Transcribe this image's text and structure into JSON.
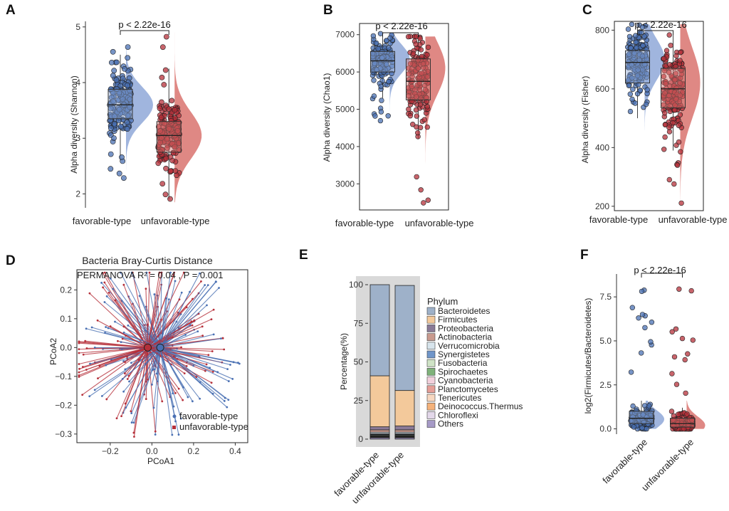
{
  "colors": {
    "favorable": "#4a70b3",
    "favorable_light": "#8fa8d8",
    "unfavorable": "#b5303a",
    "unfavorable_light": "#d9736f",
    "bar_bg": "#d9d9d9"
  },
  "chart_data": [
    {
      "panel": "A",
      "type": "raincloud",
      "ylabel": "Alpha diversity (Shannon)",
      "categories": [
        "favorable-type",
        "unfavorable-type"
      ],
      "yticks": [
        2,
        3,
        4,
        5
      ],
      "ylim": [
        1.75,
        5.1
      ],
      "pvalue": "p < 2.22e-16",
      "series": [
        {
          "name": "favorable-type",
          "q1": 3.35,
          "median": 3.6,
          "q3": 3.88,
          "min": 2.6,
          "max": 4.5,
          "ptmin": 2.2,
          "ptmax": 4.7,
          "density_peak": 3.6,
          "density_spread": 0.32
        },
        {
          "name": "unfavorable-type",
          "q1": 2.75,
          "median": 3.05,
          "q3": 3.3,
          "min": 1.9,
          "max": 4.25,
          "ptmin": 1.85,
          "ptmax": 4.9,
          "density_peak": 3.05,
          "density_spread": 0.42
        }
      ]
    },
    {
      "panel": "B",
      "type": "raincloud",
      "ylabel": "Alpha diversity (Chao1)",
      "categories": [
        "favorable-type",
        "unfavorable-type"
      ],
      "yticks": [
        3000,
        4000,
        5000,
        6000,
        7000
      ],
      "ylim": [
        2300,
        7300
      ],
      "pvalue": "p < 2.22e-16",
      "series": [
        {
          "name": "favorable-type",
          "q1": 6000,
          "median": 6300,
          "q3": 6550,
          "min": 5300,
          "max": 7000,
          "ptmin": 4550,
          "ptmax": 7050,
          "density_peak": 6350,
          "density_spread": 380
        },
        {
          "name": "unfavorable-type",
          "q1": 5250,
          "median": 5750,
          "q3": 6350,
          "min": 4200,
          "max": 6850,
          "ptmin": 2450,
          "ptmax": 6950,
          "density_peak": 6100,
          "density_spread": 700
        }
      ]
    },
    {
      "panel": "C",
      "type": "raincloud",
      "ylabel": "Alpha diversity (Fisher)",
      "categories": [
        "favorable-type",
        "unfavorable-type"
      ],
      "yticks": [
        200,
        400,
        600,
        800
      ],
      "ylim": [
        185,
        830
      ],
      "pvalue": "p < 2.22e-16",
      "series": [
        {
          "name": "favorable-type",
          "q1": 620,
          "median": 690,
          "q3": 730,
          "min": 500,
          "max": 810,
          "ptmin": 460,
          "ptmax": 820,
          "density_peak": 700,
          "density_spread": 70
        },
        {
          "name": "unfavorable-type",
          "q1": 535,
          "median": 600,
          "q3": 670,
          "min": 390,
          "max": 800,
          "ptmin": 205,
          "ptmax": 820,
          "density_peak": 620,
          "density_spread": 120
        }
      ]
    },
    {
      "panel": "D",
      "type": "scatter",
      "title": "Bacteria Bray-Curtis Distance",
      "annotation": "PERMANOVA R² = 0.04 , P = 0.001",
      "xlabel": "PCoA1",
      "ylabel": "PCoA2",
      "xticks": [
        -0.2,
        0.0,
        0.2,
        0.4
      ],
      "xtick_labels": [
        "−0.2",
        "0.0",
        "0.2",
        "0.4"
      ],
      "yticks": [
        -0.3,
        -0.2,
        -0.1,
        0.0,
        0.1,
        0.2
      ],
      "ytick_labels": [
        "−0.3",
        "−0.2",
        "−0.1",
        "0.0",
        "0.1",
        "0.2"
      ],
      "xlim": [
        -0.36,
        0.46
      ],
      "ylim": [
        -0.33,
        0.27
      ],
      "legend": [
        "favorable-type",
        "unfavorable-type"
      ],
      "centroids": [
        {
          "name": "favorable-type",
          "x": 0.04,
          "y": 0.0
        },
        {
          "name": "unfavorable-type",
          "x": -0.02,
          "y": 0.0
        }
      ]
    },
    {
      "panel": "E",
      "type": "bar",
      "stacked": true,
      "ylabel": "Percentage(%)",
      "yticks": [
        0,
        25,
        50,
        75,
        100
      ],
      "categories": [
        "favorable-type",
        "unfavorable-type"
      ],
      "legend_title": "Phylum",
      "series": [
        {
          "name": "Bacteroidetes",
          "color": "#9eb1c9",
          "values": [
            59,
            68
          ]
        },
        {
          "name": "Firmicutes",
          "color": "#f3c99b",
          "values": [
            33,
            23
          ]
        },
        {
          "name": "Proteobacteria",
          "color": "#8a7a97",
          "values": [
            2,
            2.5
          ]
        },
        {
          "name": "Actinobacteria",
          "color": "#c99a8e",
          "values": [
            1.5,
            1.5
          ]
        },
        {
          "name": "Verrucomicrobia",
          "color": "#d7e4ec",
          "values": [
            1,
            1
          ]
        },
        {
          "name": "Synergistetes",
          "color": "#6f95c9",
          "values": [
            0.5,
            0.5
          ]
        },
        {
          "name": "Fusobacteria",
          "color": "#cfe3c6",
          "values": [
            0.5,
            0.5
          ]
        },
        {
          "name": "Spirochaetes",
          "color": "#7fb27a",
          "values": [
            0.3,
            0.3
          ]
        },
        {
          "name": "Cyanobacteria",
          "color": "#f2d0dc",
          "values": [
            0.3,
            0.3
          ]
        },
        {
          "name": "Planctomycetes",
          "color": "#e59e97",
          "values": [
            0.3,
            0.3
          ]
        },
        {
          "name": "Tenericutes",
          "color": "#f7d7c0",
          "values": [
            0.3,
            0.3
          ]
        },
        {
          "name": "Deinococcus.Thermus",
          "color": "#f5b27a",
          "values": [
            0.2,
            0.2
          ]
        },
        {
          "name": "Chloroflexi",
          "color": "#e3d8ea",
          "values": [
            0.2,
            0.2
          ]
        },
        {
          "name": "Others",
          "color": "#a69ac7",
          "values": [
            0.9,
            0.9
          ]
        }
      ]
    },
    {
      "panel": "F",
      "type": "raincloud",
      "ylabel": "log2(Firmicutes/Bacteroidetes)",
      "categories": [
        "favorable-type",
        "unfavorable-type"
      ],
      "yticks": [
        0,
        2.5,
        5,
        7.5
      ],
      "ytick_labels": [
        "0.0",
        "2.5",
        "5.0",
        "7.5"
      ],
      "ylim": [
        -0.3,
        8.8
      ],
      "pvalue": "p < 2.22e-16",
      "series": [
        {
          "name": "favorable-type",
          "q1": 0.3,
          "median": 0.6,
          "q3": 1.0,
          "min": 0.0,
          "max": 1.6,
          "ptmin": 0.0,
          "ptmax": 8.1,
          "density_peak": 0.55,
          "density_spread": 0.5
        },
        {
          "name": "unfavorable-type",
          "q1": 0.1,
          "median": 0.3,
          "q3": 0.6,
          "min": 0.0,
          "max": 1.2,
          "ptmin": 0.0,
          "ptmax": 8.5,
          "density_peak": 0.2,
          "density_spread": 0.5
        }
      ]
    }
  ]
}
